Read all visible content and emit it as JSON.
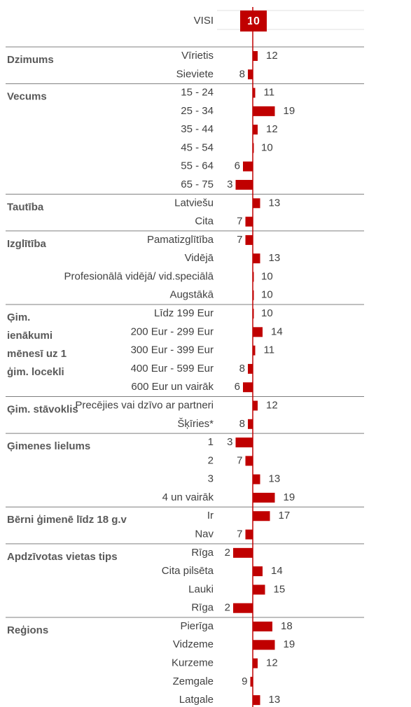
{
  "chart_data": {
    "type": "bar",
    "color": "#c00000",
    "total": {
      "label": "VISI",
      "value": 10
    },
    "groups": [
      {
        "header": [
          "Dzimums"
        ],
        "rows": [
          {
            "label": "Vīrietis",
            "value": 12
          },
          {
            "label": "Sieviete",
            "value": 8
          }
        ]
      },
      {
        "header": [
          "Vecums"
        ],
        "rows": [
          {
            "label": "15 - 24",
            "value": 11
          },
          {
            "label": "25 - 34",
            "value": 19
          },
          {
            "label": "35 - 44",
            "value": 12
          },
          {
            "label": "45 - 54",
            "value": 10
          },
          {
            "label": "55 - 64",
            "value": 6
          },
          {
            "label": "65 - 75",
            "value": 3
          }
        ]
      },
      {
        "header": [
          "Tautība"
        ],
        "rows": [
          {
            "label": "Latviešu",
            "value": 13
          },
          {
            "label": "Cita",
            "value": 7
          }
        ]
      },
      {
        "header": [
          "Izglītība"
        ],
        "rows": [
          {
            "label": "Pamatizglītība",
            "value": 7
          },
          {
            "label": "Vidējā",
            "value": 13
          },
          {
            "label": "Profesionālā vidējā/ vid.speciālā",
            "value": 10
          },
          {
            "label": "Augstākā",
            "value": 10
          }
        ]
      },
      {
        "header": [
          "Ģim.",
          "ienākumi",
          "mēnesī uz 1",
          "ģim. locekli"
        ],
        "rows": [
          {
            "label": "Līdz 199 Eur",
            "value": 10
          },
          {
            "label": "200 Eur - 299 Eur",
            "value": 14
          },
          {
            "label": "300 Eur - 399 Eur",
            "value": 11
          },
          {
            "label": "400 Eur - 599 Eur",
            "value": 8
          },
          {
            "label": "600 Eur un vairāk",
            "value": 6
          }
        ]
      },
      {
        "header": [
          "Ģim. stāvoklis"
        ],
        "rows": [
          {
            "label": "Precējies vai dzīvo ar partneri",
            "value": 12
          },
          {
            "label": "Šķīries*",
            "value": 8
          }
        ]
      },
      {
        "header": [
          "Ģimenes lielums"
        ],
        "rows": [
          {
            "label": "1",
            "value": 3
          },
          {
            "label": "2",
            "value": 7
          },
          {
            "label": "3",
            "value": 13
          },
          {
            "label": "4  un vairāk",
            "value": 19
          }
        ]
      },
      {
        "header": [
          "Bērni ģimenē līdz 18 g.v"
        ],
        "rows": [
          {
            "label": "Ir",
            "value": 17
          },
          {
            "label": "Nav",
            "value": 7
          }
        ]
      },
      {
        "header": [
          "Apdzīvotas vietas tips"
        ],
        "rows": [
          {
            "label": "Rīga",
            "value": 2
          },
          {
            "label": "Cita pilsēta",
            "value": 14
          },
          {
            "label": "Lauki",
            "value": 15
          },
          {
            "label": "Rīga",
            "value": 2
          }
        ]
      },
      {
        "header": [
          "Reģions"
        ],
        "rows": [
          {
            "label": "Pierīga",
            "value": 18
          },
          {
            "label": "Vidzeme",
            "value": 19
          },
          {
            "label": "Kurzeme",
            "value": 12
          },
          {
            "label": "Zemgale",
            "value": 9
          },
          {
            "label": "Latgale",
            "value": 13
          }
        ]
      }
    ]
  }
}
